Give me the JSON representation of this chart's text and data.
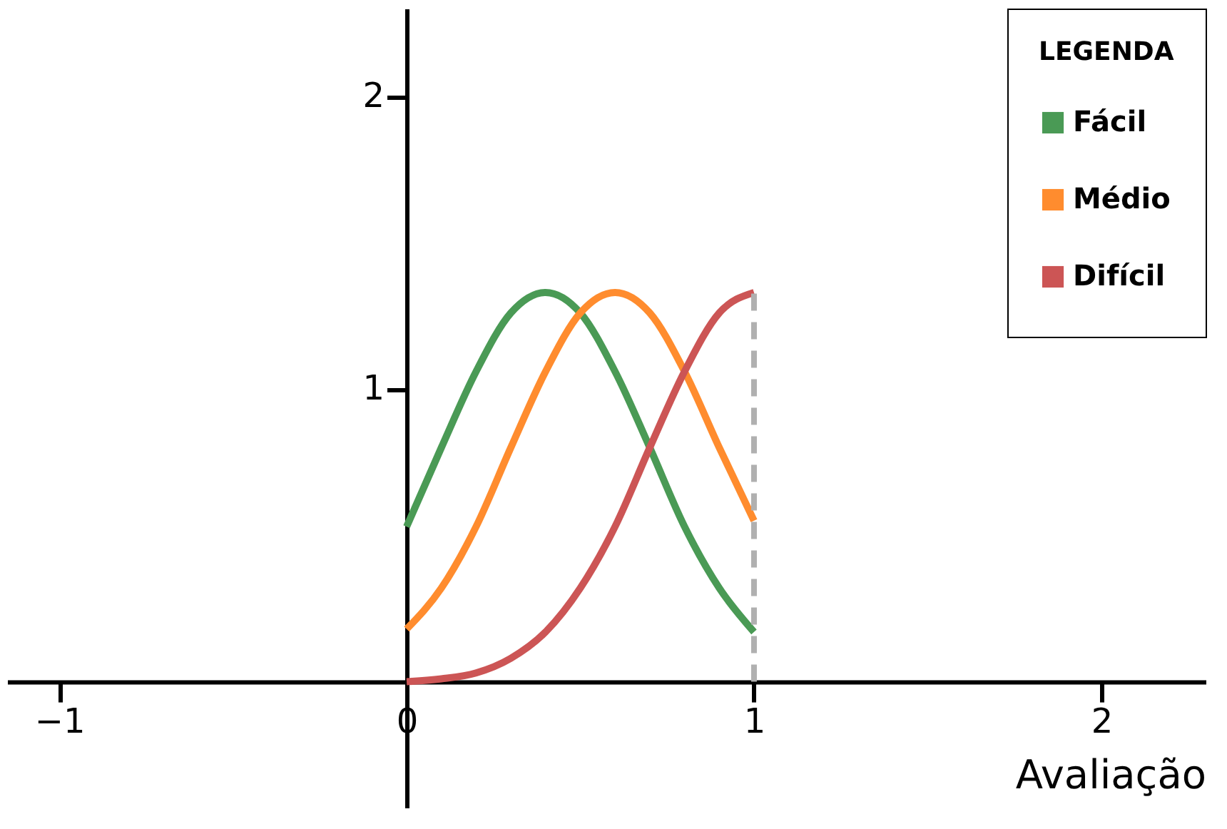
{
  "chart_data": {
    "type": "line",
    "xlabel": "Avaliação",
    "legend_title": "LEGENDA",
    "legend": "top right",
    "grid": false,
    "line_style": "solid",
    "marker": "none",
    "x": [
      0,
      0.1,
      0.2,
      0.3,
      0.4,
      0.5,
      0.6,
      0.7,
      0.8,
      0.9,
      1
    ],
    "series": [
      {
        "name": "Fácil",
        "color": "#4a9a55",
        "values": [
          0.53,
          0.8,
          1.06,
          1.26,
          1.33,
          1.26,
          1.06,
          0.8,
          0.53,
          0.32,
          0.17
        ]
      },
      {
        "name": "Médio",
        "color": "#ff8c2e",
        "values": [
          0.18,
          0.32,
          0.53,
          0.8,
          1.06,
          1.26,
          1.33,
          1.26,
          1.06,
          0.8,
          0.55
        ]
      },
      {
        "name": "Difícil",
        "color": "#cc5555",
        "values": [
          0,
          0.01,
          0.03,
          0.08,
          0.17,
          0.32,
          0.53,
          0.8,
          1.06,
          1.26,
          1.33
        ]
      }
    ],
    "xlim": [
      -1.15,
      2.3
    ],
    "ylim": [
      -0.43,
      2.3
    ],
    "xticks": [
      -1,
      0,
      1,
      2
    ],
    "yticks": [
      1,
      2
    ],
    "ref_lines": [
      {
        "axis": "x",
        "value": 1,
        "color": "#b0b0b0",
        "line_style": "dashed"
      }
    ]
  }
}
